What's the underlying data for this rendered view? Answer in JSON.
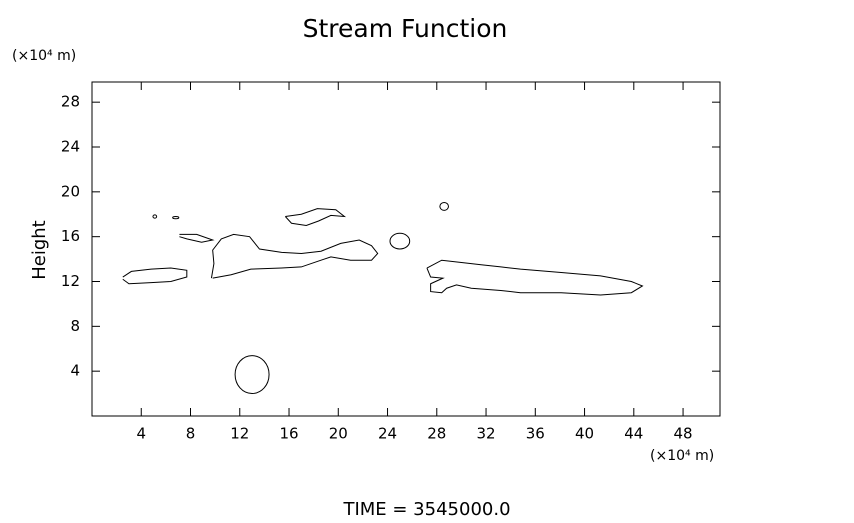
{
  "chart_data": {
    "type": "contour",
    "title": "Stream Function",
    "y_unit": "(×10⁴ m)",
    "x_unit": "(×10⁴ m)",
    "y_label": "Height",
    "footer": "TIME = 3545000.0",
    "xlim": [
      0,
      51
    ],
    "ylim": [
      0,
      29.8
    ],
    "xticks": [
      4,
      8,
      12,
      16,
      20,
      24,
      28,
      32,
      36,
      40,
      44,
      48
    ],
    "yticks": [
      4,
      8,
      12,
      16,
      20,
      24,
      28
    ],
    "color": "#000000",
    "contours": [
      {
        "x": [
          2.5,
          3.2,
          4.8,
          6.4,
          7.7,
          7.7,
          6.4,
          4.8,
          3.0,
          2.5
        ],
        "y": [
          12.4,
          12.9,
          13.1,
          13.2,
          13.0,
          12.4,
          12.0,
          11.9,
          11.8,
          12.2
        ]
      },
      {
        "x": [
          9.7,
          9.9,
          9.8,
          10.5,
          11.5,
          12.8,
          13.6,
          15.4,
          17.0,
          18.6,
          20.2,
          21.7,
          22.7,
          23.2,
          22.7,
          21.0,
          19.4,
          18.6,
          17.0,
          15.4,
          12.9,
          11.3,
          9.8
        ],
        "y": [
          12.3,
          13.6,
          14.8,
          15.8,
          16.2,
          16.0,
          14.9,
          14.6,
          14.5,
          14.7,
          15.4,
          15.7,
          15.2,
          14.5,
          13.9,
          13.9,
          14.2,
          13.9,
          13.3,
          13.2,
          13.1,
          12.6,
          12.3
        ]
      },
      {
        "x": [
          7.1,
          8.5,
          9.8,
          8.9,
          7.7,
          7.1
        ],
        "y": [
          16.2,
          16.2,
          15.7,
          15.5,
          15.8,
          16.0
        ]
      },
      {
        "x": [
          15.7,
          17.0,
          18.3,
          19.8,
          20.5,
          19.4,
          18.4,
          17.4,
          16.2,
          15.7
        ],
        "y": [
          17.8,
          18.0,
          18.5,
          18.4,
          17.8,
          17.9,
          17.4,
          17.0,
          17.2,
          17.8
        ]
      },
      {
        "x": [
          27.2,
          28.4,
          30.0,
          31.6,
          33.2,
          34.8,
          38.1,
          41.3,
          43.8,
          44.7,
          43.8,
          41.3,
          38.1,
          34.8,
          33.2,
          30.8,
          29.6,
          28.8,
          28.4,
          27.5,
          27.5,
          28.5,
          27.5,
          27.2
        ],
        "y": [
          13.2,
          13.9,
          13.7,
          13.5,
          13.3,
          13.1,
          12.8,
          12.5,
          12.0,
          11.6,
          11.0,
          10.8,
          11.0,
          11.0,
          11.2,
          11.4,
          11.7,
          11.4,
          11.0,
          11.1,
          11.8,
          12.3,
          12.4,
          13.2
        ]
      }
    ],
    "ellipses": [
      {
        "cx": 13.0,
        "cy": 3.7,
        "rx": 1.38,
        "ry": 1.69
      },
      {
        "cx": 25.0,
        "cy": 15.6,
        "rx": 0.8,
        "ry": 0.7
      },
      {
        "cx": 28.6,
        "cy": 18.7,
        "rx": 0.35,
        "ry": 0.35
      },
      {
        "cx": 5.1,
        "cy": 17.8,
        "rx": 0.15,
        "ry": 0.15
      },
      {
        "cx": 6.8,
        "cy": 17.7,
        "rx": 0.25,
        "ry": 0.1
      }
    ]
  }
}
